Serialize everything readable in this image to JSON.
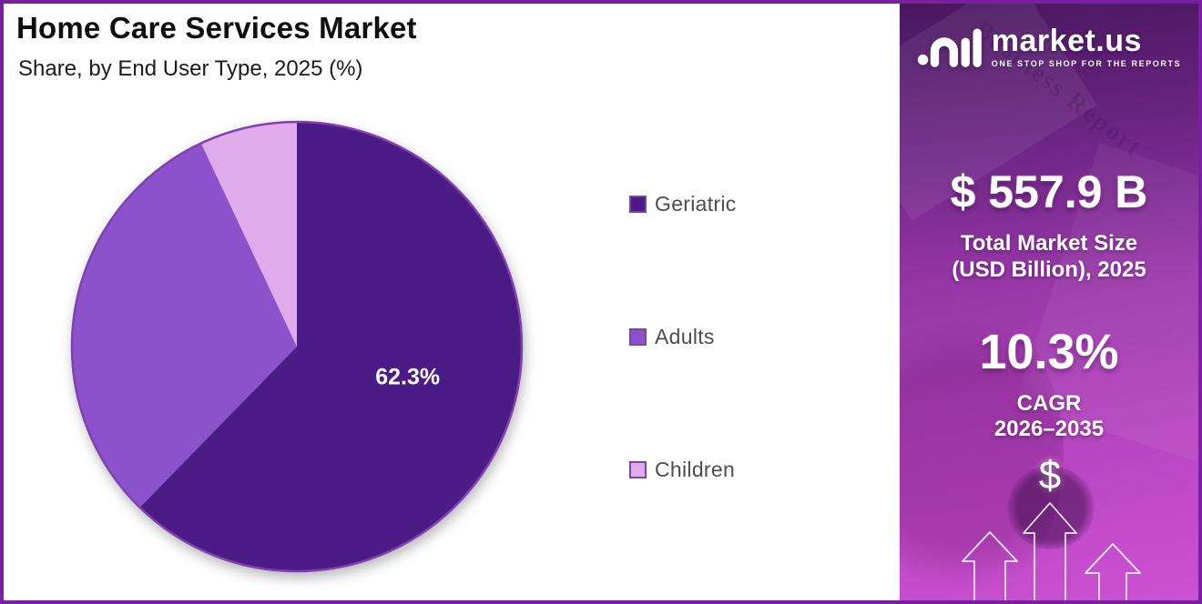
{
  "header": {
    "title": "Home Care Services Market",
    "subtitle": "Share, by End User Type, 2025 (%)"
  },
  "chart_data": {
    "type": "pie",
    "title": "Home Care Services Market Share, by End User Type, 2025 (%)",
    "unit": "%",
    "start_angle_deg": 0,
    "direction": "clockwise",
    "series": [
      {
        "name": "Geriatric",
        "value": 62.3,
        "color": "#4B1C85",
        "label": "62.3%"
      },
      {
        "name": "Adults",
        "value": 30.7,
        "color": "#8C52CC",
        "label": null
      },
      {
        "name": "Children",
        "value": 7.0,
        "color": "#DFABEB",
        "label": null
      }
    ],
    "outline_color": "#8040B0",
    "label_color": "#FFFFFF",
    "legend_position": "right",
    "legend_text_color": "#4D4D4D"
  },
  "sidebar": {
    "logo": {
      "brand": "market.us",
      "tagline": "ONE STOP SHOP FOR THE REPORTS"
    },
    "market_size": {
      "value": "$ 557.9 B",
      "label_line1": "Total Market Size",
      "label_line2": "(USD Billion), 2025"
    },
    "cagr": {
      "value": "10.3%",
      "label_line1": "CAGR",
      "label_line2": "2026–2035"
    },
    "dollar_symbol": "$",
    "watermark": "Business Report",
    "colors": {
      "gradient_top": "#5C1F75",
      "gradient_mid": "#9C39AB",
      "gradient_bottom": "#CB52D1",
      "frame_border": "#7B1FA2"
    }
  }
}
